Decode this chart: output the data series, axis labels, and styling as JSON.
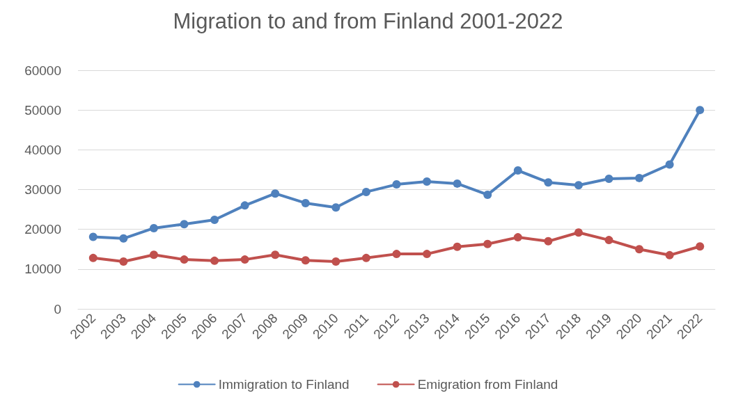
{
  "chart_data": {
    "type": "line",
    "title": "Migration to and from Finland 2001-2022",
    "categories": [
      "2002",
      "2003",
      "2004",
      "2005",
      "2006",
      "2007",
      "2008",
      "2009",
      "2010",
      "2011",
      "2012",
      "2013",
      "2014",
      "2015",
      "2016",
      "2017",
      "2018",
      "2019",
      "2020",
      "2021",
      "2022"
    ],
    "series": [
      {
        "name": "Immigration to Finland",
        "color": "#4f81bd",
        "values": [
          18100,
          17700,
          20300,
          21300,
          22400,
          26000,
          29000,
          26600,
          25500,
          29400,
          31300,
          32000,
          31500,
          28700,
          34800,
          31800,
          31100,
          32700,
          32900,
          36300,
          50000
        ]
      },
      {
        "name": "Emigration from Finland",
        "color": "#c0504d",
        "values": [
          12800,
          11900,
          13600,
          12400,
          12100,
          12400,
          13600,
          12200,
          11900,
          12800,
          13800,
          13800,
          15600,
          16300,
          18000,
          17000,
          19200,
          17300,
          15000,
          13500,
          15700
        ]
      }
    ],
    "ylim": [
      0,
      60000
    ],
    "yticks": [
      0,
      10000,
      20000,
      30000,
      40000,
      50000,
      60000
    ],
    "grid": "y",
    "legend": "bottom",
    "marker": "circle",
    "line_style": "solid"
  }
}
